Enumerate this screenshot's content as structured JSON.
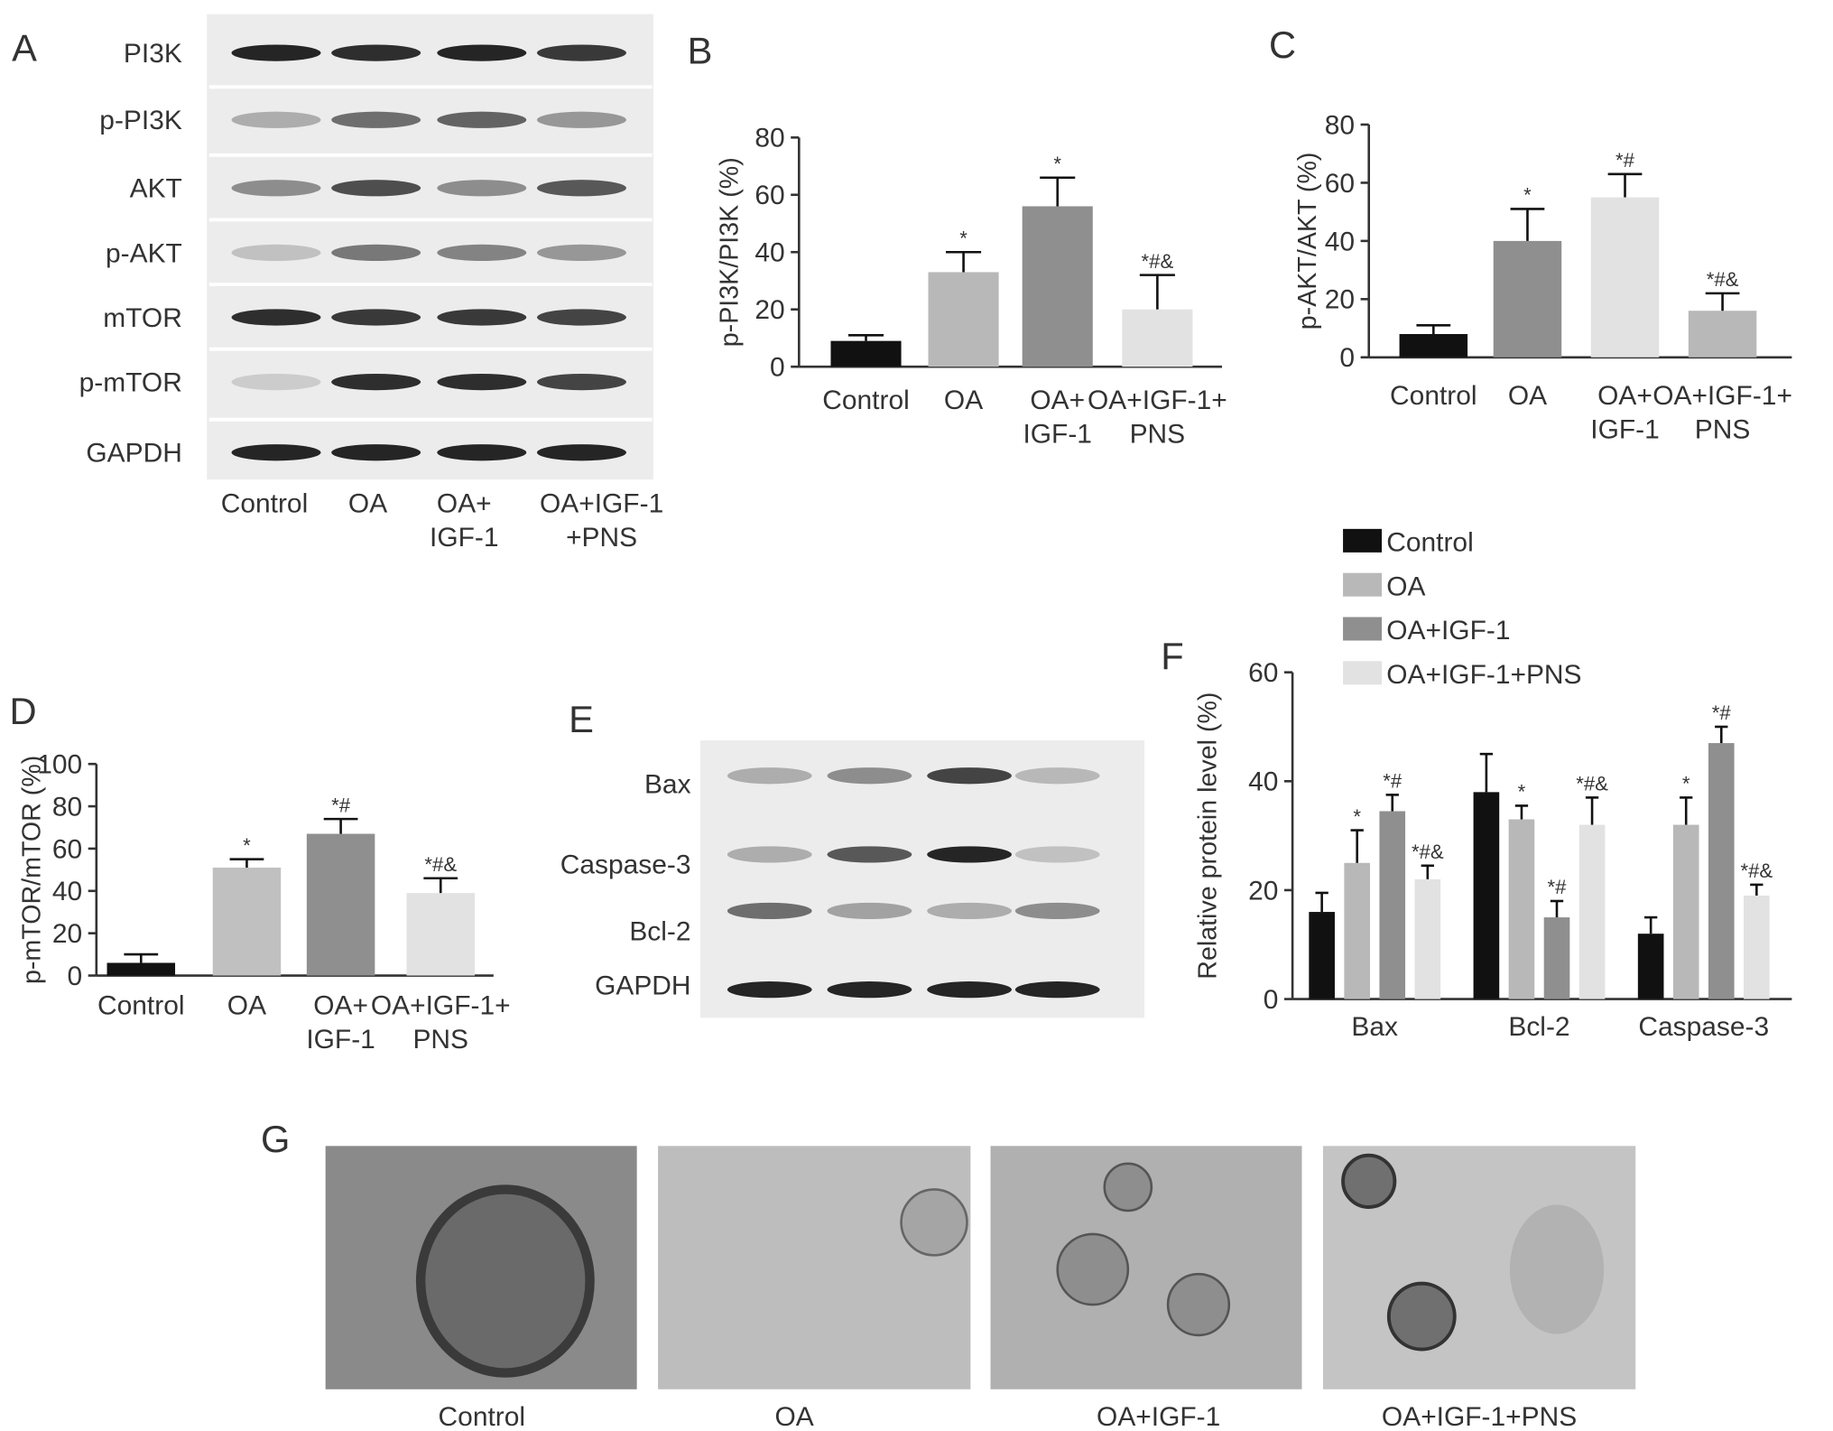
{
  "panel_labels": [
    "A",
    "B",
    "C",
    "D",
    "E",
    "F",
    "G"
  ],
  "blot_a": {
    "rows": [
      "PI3K",
      "p-PI3K",
      "AKT",
      "p-AKT",
      "mTOR",
      "p-mTOR",
      "GAPDH"
    ],
    "lanes": [
      "Control",
      "OA",
      "OA+\nIGF-1",
      "OA+IGF-1\n+PNS"
    ]
  },
  "blot_e": {
    "rows": [
      "Bax",
      "Caspase-3",
      "Bcl-2",
      "GAPDH"
    ]
  },
  "micrographs": {
    "captions": [
      "Control",
      "OA",
      "OA+IGF-1",
      "OA+IGF-1+PNS"
    ]
  },
  "chart_data": [
    {
      "type": "bar",
      "y_label": "p-PI3K/PI3K (%)",
      "categories": [
        "Control",
        "OA",
        "OA+\nIGF-1",
        "OA+IGF-1+\nPNS"
      ],
      "values": [
        9,
        33,
        56,
        20
      ],
      "errors": [
        2,
        7,
        10,
        12
      ],
      "annotations": [
        null,
        "*",
        "*",
        "*#&"
      ],
      "colors": [
        "#111111",
        "#b8b8b8",
        "#8f8f8f",
        "#e2e2e2"
      ],
      "ylim": [
        0,
        80
      ],
      "yticks": [
        0,
        20,
        40,
        60,
        80
      ]
    },
    {
      "type": "bar",
      "y_label": "p-AKT/AKT (%)",
      "categories": [
        "Control",
        "OA",
        "OA+\nIGF-1",
        "OA+IGF-1+\nPNS"
      ],
      "values": [
        8,
        40,
        55,
        16
      ],
      "errors": [
        3,
        11,
        8,
        6
      ],
      "annotations": [
        null,
        "*",
        "*#",
        "*#&"
      ],
      "colors": [
        "#111111",
        "#8f8f8f",
        "#e2e2e2",
        "#b8b8b8"
      ],
      "ylim": [
        0,
        80
      ],
      "yticks": [
        0,
        20,
        40,
        60,
        80
      ]
    },
    {
      "type": "bar",
      "y_label": "p-mTOR/mTOR (%)",
      "categories": [
        "Control",
        "OA",
        "OA+\nIGF-1",
        "OA+IGF-1+\nPNS"
      ],
      "values": [
        6,
        51,
        67,
        39
      ],
      "errors": [
        4,
        4,
        7,
        7
      ],
      "annotations": [
        null,
        "*",
        "*#",
        "*#&"
      ],
      "colors": [
        "#111111",
        "#c0c0c0",
        "#8f8f8f",
        "#e2e2e2"
      ],
      "ylim": [
        0,
        100
      ],
      "yticks": [
        0,
        20,
        40,
        60,
        80,
        100
      ]
    },
    {
      "type": "grouped_bar",
      "y_label": "Relative protein level (%)",
      "categories": [
        "Bax",
        "Bcl-2",
        "Caspase-3"
      ],
      "series": [
        {
          "name": "Control",
          "color": "#111111",
          "values": [
            16,
            38,
            12
          ],
          "errors": [
            3.5,
            7,
            3
          ],
          "annotations": [
            null,
            null,
            null
          ]
        },
        {
          "name": "OA",
          "color": "#b8b8b8",
          "values": [
            25,
            33,
            32
          ],
          "errors": [
            6,
            2.5,
            5
          ],
          "annotations": [
            "*",
            "*",
            "*"
          ]
        },
        {
          "name": "OA+IGF-1",
          "color": "#8f8f8f",
          "values": [
            34.5,
            15,
            47
          ],
          "errors": [
            3,
            3,
            3
          ],
          "annotations": [
            "*#",
            "*#",
            "*#"
          ]
        },
        {
          "name": "OA+IGF-1+PNS",
          "color": "#e2e2e2",
          "values": [
            22,
            32,
            19
          ],
          "errors": [
            2.5,
            5,
            2
          ],
          "annotations": [
            "*#&",
            "*#&",
            "*#&"
          ]
        }
      ],
      "ylim": [
        0,
        60
      ],
      "yticks": [
        0,
        20,
        40,
        60
      ],
      "legend": "top-left"
    }
  ]
}
